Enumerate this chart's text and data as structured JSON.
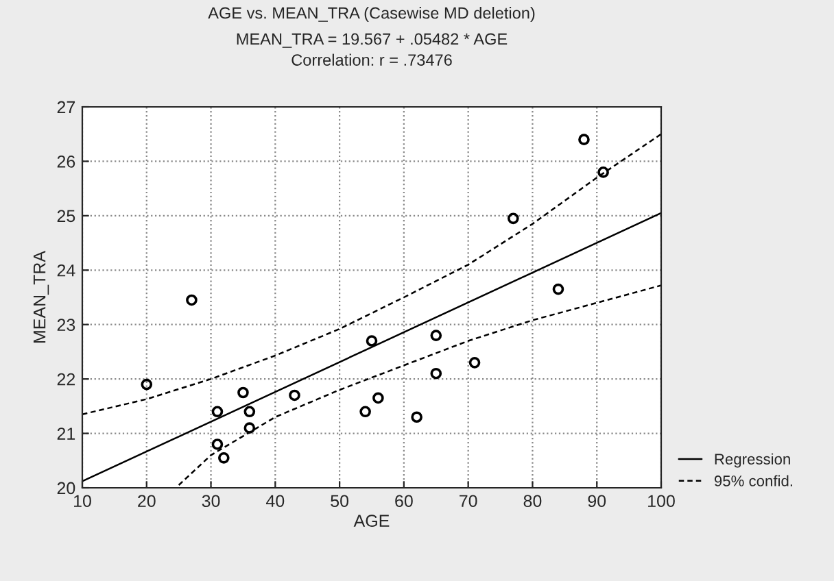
{
  "chart_data": {
    "type": "scatter",
    "title": "AGE vs. MEAN_TRA (Casewise MD deletion)",
    "subtitle": "MEAN_TRA = 19.567 + .05482 * AGE\nCorrelation: r = .73476",
    "xlabel": "AGE",
    "ylabel": "MEAN_TRA",
    "series": [
      {
        "color": "#000000",
        "marker": "circle",
        "x": [
          20,
          27,
          31,
          31,
          32,
          35,
          36,
          36,
          43,
          54,
          55,
          56,
          62,
          65,
          65,
          71,
          77,
          84,
          88,
          91
        ],
        "values": [
          21.9,
          23.45,
          21.4,
          20.8,
          20.55,
          21.75,
          21.4,
          21.1,
          21.7,
          21.4,
          22.7,
          21.65,
          21.3,
          22.8,
          22.1,
          22.3,
          24.95,
          23.65,
          26.4,
          25.8
        ]
      },
      {
        "type": "line",
        "name": "Regression",
        "color": "#000000",
        "line_style": "solid",
        "x": [
          10,
          100
        ],
        "values": [
          20.12,
          25.05
        ]
      },
      {
        "type": "line",
        "name": "95% confid.",
        "color": "#000000",
        "line_style": "dashed",
        "x": [
          10,
          20,
          30,
          40,
          50,
          60,
          70,
          80,
          90,
          100
        ],
        "values": [
          21.35,
          21.63,
          22.0,
          22.43,
          22.92,
          23.5,
          24.1,
          24.85,
          25.7,
          26.5
        ]
      },
      {
        "type": "line",
        "color": "#000000",
        "line_style": "dashed",
        "x": [
          25,
          30,
          40,
          50,
          60,
          70,
          80,
          90,
          100
        ],
        "values": [
          20.05,
          20.6,
          21.3,
          21.8,
          22.25,
          22.7,
          23.08,
          23.4,
          23.72
        ]
      }
    ],
    "xlim": [
      10,
      100
    ],
    "xticks": [
      10,
      20,
      30,
      40,
      50,
      60,
      70,
      80,
      90,
      100
    ],
    "ylim": [
      20,
      27
    ],
    "yticks": [
      20,
      21,
      22,
      23,
      24,
      25,
      26,
      27
    ],
    "grid": true,
    "legend": "bottom right"
  }
}
